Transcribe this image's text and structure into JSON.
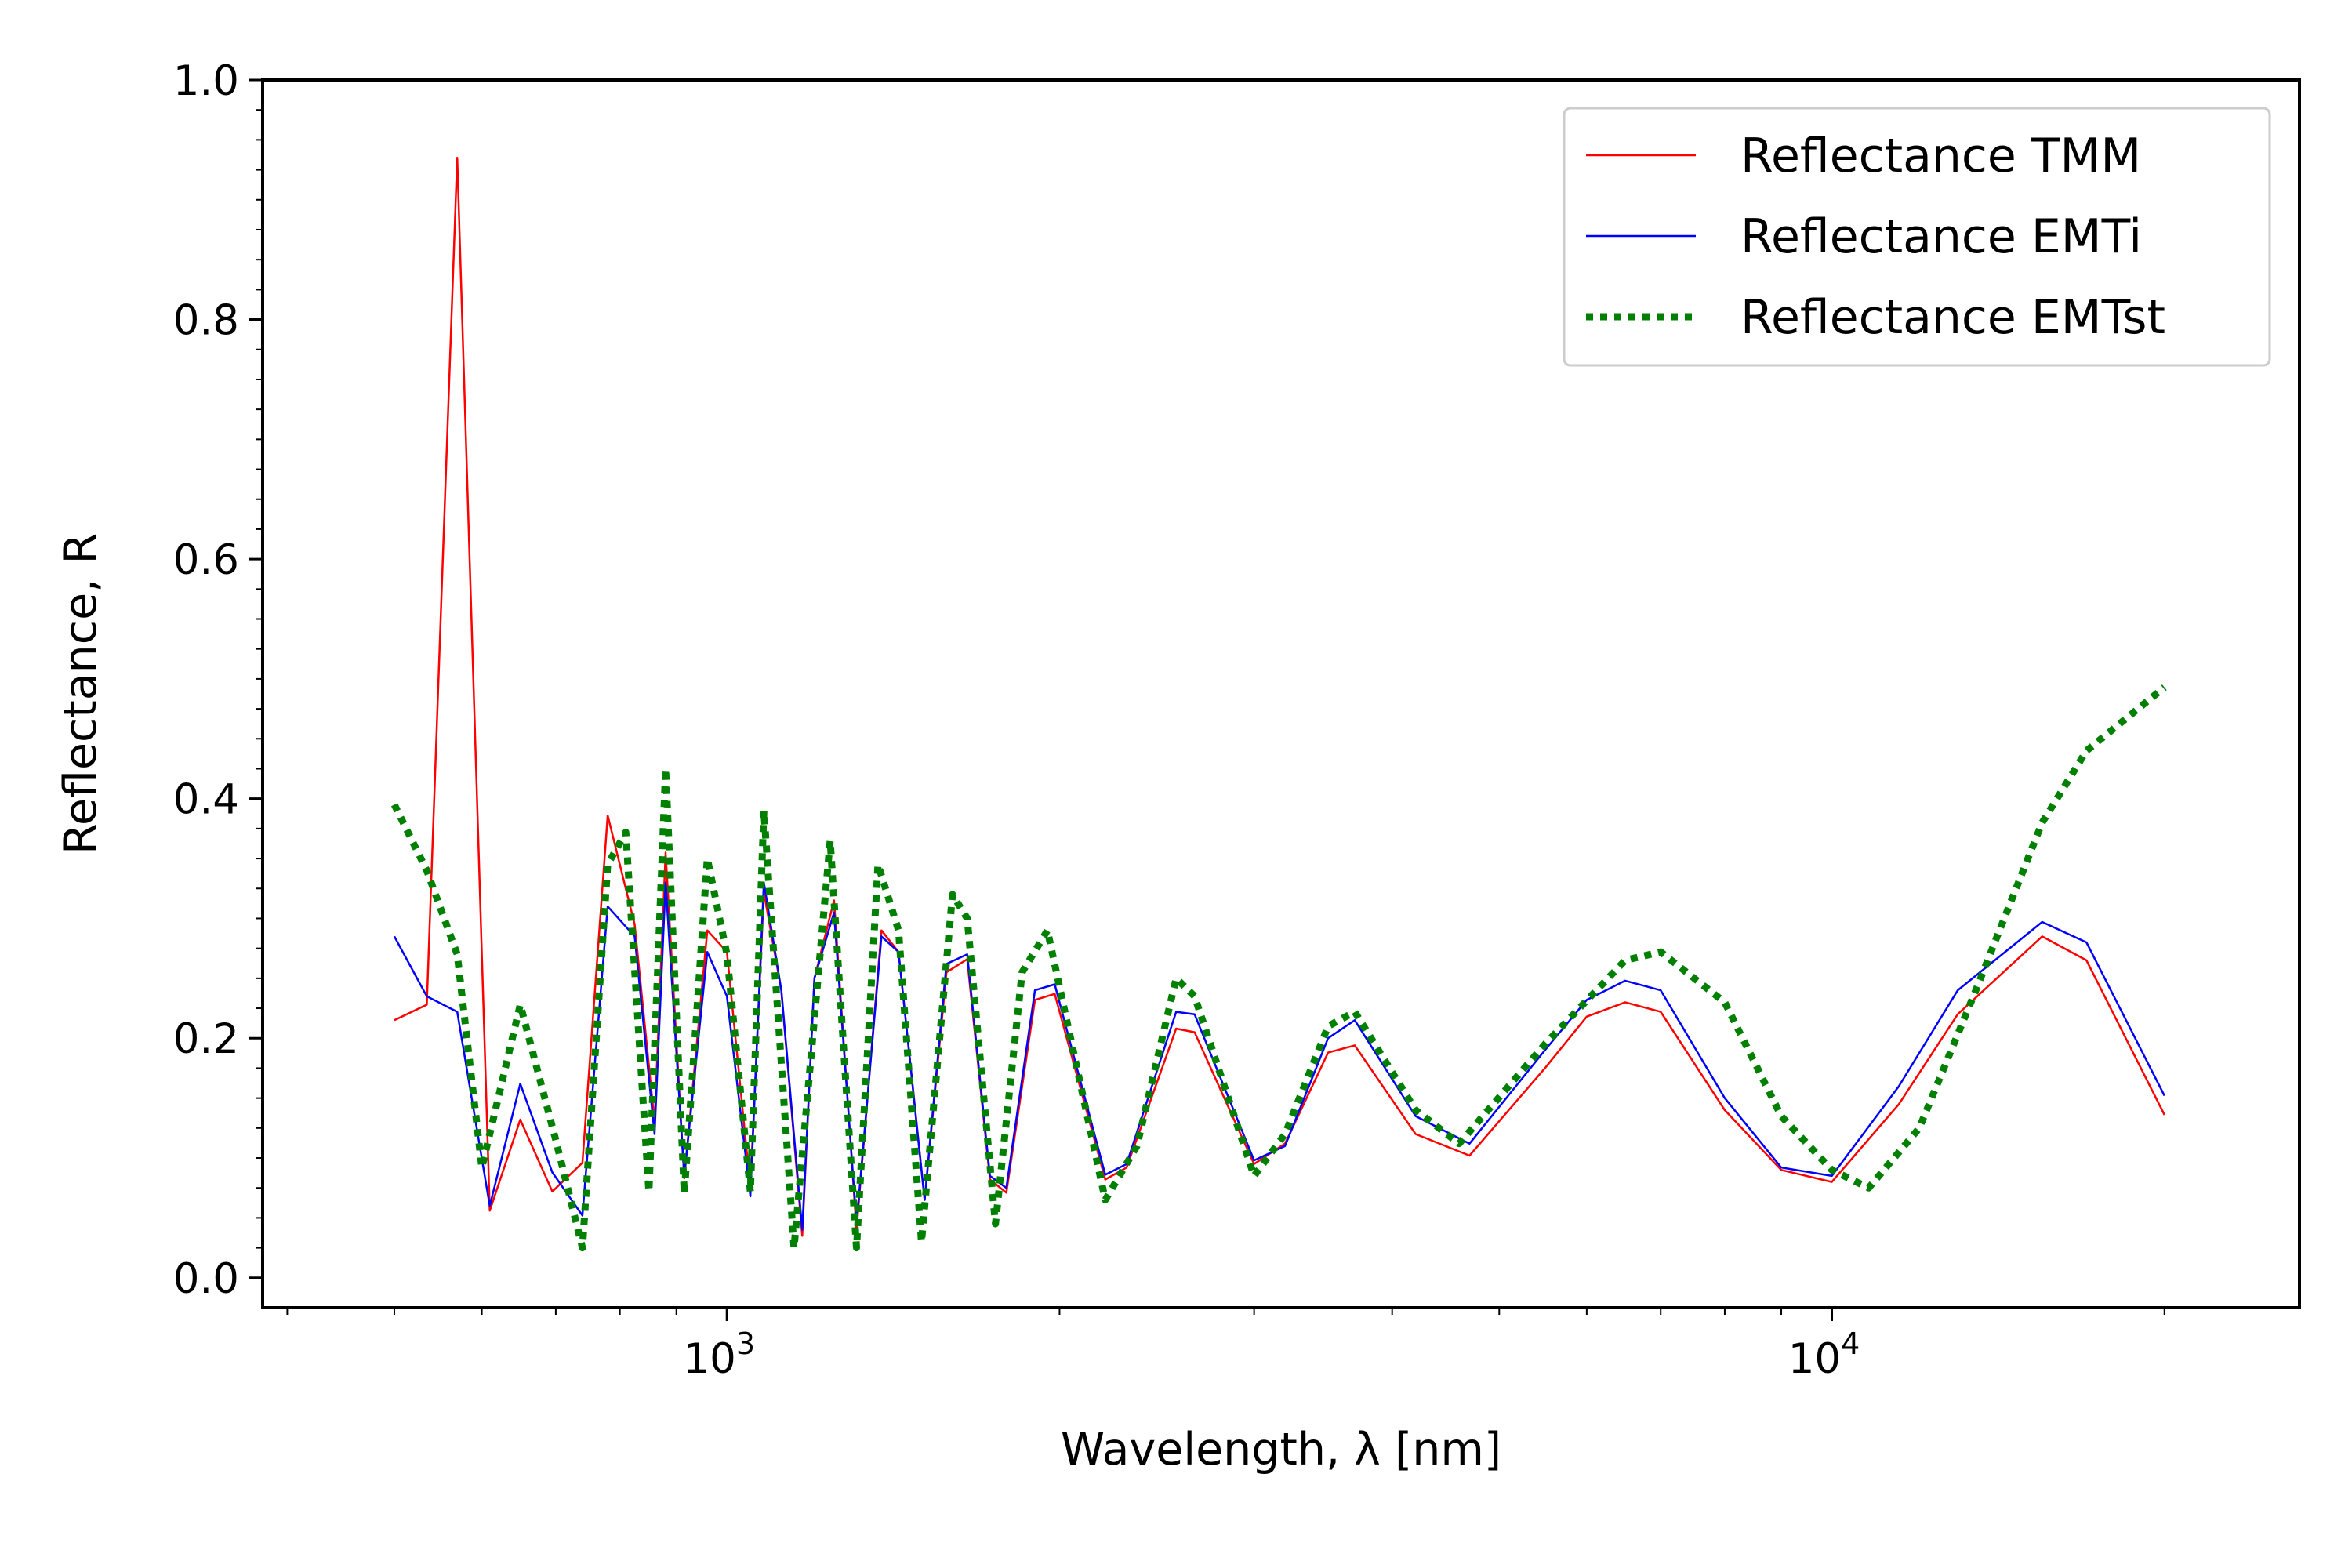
{
  "chart_data": {
    "type": "line",
    "xlabel": "Wavelength, λ [nm]",
    "ylabel": "Reflectance, R",
    "xscale": "log",
    "xlim": [
      380,
      26500
    ],
    "ylim": [
      -0.025,
      1.0
    ],
    "grid": false,
    "legend_position": "top-right",
    "x_ticks": [
      {
        "value": 1000,
        "base": "10",
        "exp": "3"
      },
      {
        "value": 10000,
        "base": "10",
        "exp": "4"
      }
    ],
    "y_ticks": [
      {
        "value": 0.0,
        "label": "0.0"
      },
      {
        "value": 0.2,
        "label": "0.2"
      },
      {
        "value": 0.4,
        "label": "0.4"
      },
      {
        "value": 0.6,
        "label": "0.6"
      },
      {
        "value": 0.8,
        "label": "0.8"
      },
      {
        "value": 1.0,
        "label": "1.0"
      }
    ],
    "series": [
      {
        "name": "Reflectance TMM",
        "color": "#ff0000",
        "style": "solid",
        "points": [
          [
            500,
            0.215
          ],
          [
            535,
            0.228
          ],
          [
            570,
            0.935
          ],
          [
            610,
            0.056
          ],
          [
            650,
            0.132
          ],
          [
            695,
            0.072
          ],
          [
            740,
            0.096
          ],
          [
            780,
            0.386
          ],
          [
            825,
            0.295
          ],
          [
            860,
            0.13
          ],
          [
            880,
            0.355
          ],
          [
            915,
            0.083
          ],
          [
            960,
            0.29
          ],
          [
            1000,
            0.272
          ],
          [
            1050,
            0.075
          ],
          [
            1080,
            0.322
          ],
          [
            1120,
            0.24
          ],
          [
            1170,
            0.035
          ],
          [
            1200,
            0.25
          ],
          [
            1250,
            0.315
          ],
          [
            1310,
            0.04
          ],
          [
            1380,
            0.29
          ],
          [
            1430,
            0.272
          ],
          [
            1510,
            0.065
          ],
          [
            1580,
            0.255
          ],
          [
            1650,
            0.266
          ],
          [
            1730,
            0.082
          ],
          [
            1790,
            0.071
          ],
          [
            1900,
            0.232
          ],
          [
            1980,
            0.237
          ],
          [
            2200,
            0.082
          ],
          [
            2300,
            0.092
          ],
          [
            2550,
            0.208
          ],
          [
            2650,
            0.205
          ],
          [
            3000,
            0.095
          ],
          [
            3200,
            0.112
          ],
          [
            3500,
            0.188
          ],
          [
            3700,
            0.194
          ],
          [
            4200,
            0.12
          ],
          [
            4700,
            0.102
          ],
          [
            5500,
            0.175
          ],
          [
            6000,
            0.218
          ],
          [
            6500,
            0.23
          ],
          [
            7000,
            0.222
          ],
          [
            8000,
            0.14
          ],
          [
            9000,
            0.09
          ],
          [
            10000,
            0.08
          ],
          [
            11500,
            0.145
          ],
          [
            13000,
            0.22
          ],
          [
            15500,
            0.285
          ],
          [
            17000,
            0.265
          ],
          [
            20000,
            0.136
          ]
        ]
      },
      {
        "name": "Reflectance EMTi",
        "color": "#0000ff",
        "style": "solid",
        "points": [
          [
            500,
            0.285
          ],
          [
            535,
            0.235
          ],
          [
            570,
            0.222
          ],
          [
            610,
            0.06
          ],
          [
            650,
            0.162
          ],
          [
            695,
            0.088
          ],
          [
            740,
            0.052
          ],
          [
            780,
            0.31
          ],
          [
            825,
            0.285
          ],
          [
            860,
            0.12
          ],
          [
            880,
            0.33
          ],
          [
            915,
            0.085
          ],
          [
            960,
            0.272
          ],
          [
            1000,
            0.235
          ],
          [
            1050,
            0.068
          ],
          [
            1080,
            0.33
          ],
          [
            1120,
            0.24
          ],
          [
            1170,
            0.04
          ],
          [
            1200,
            0.25
          ],
          [
            1250,
            0.305
          ],
          [
            1310,
            0.045
          ],
          [
            1380,
            0.285
          ],
          [
            1430,
            0.272
          ],
          [
            1510,
            0.065
          ],
          [
            1580,
            0.262
          ],
          [
            1650,
            0.27
          ],
          [
            1730,
            0.085
          ],
          [
            1790,
            0.075
          ],
          [
            1900,
            0.24
          ],
          [
            1980,
            0.245
          ],
          [
            2200,
            0.086
          ],
          [
            2300,
            0.095
          ],
          [
            2550,
            0.222
          ],
          [
            2650,
            0.22
          ],
          [
            3000,
            0.098
          ],
          [
            3200,
            0.11
          ],
          [
            3500,
            0.2
          ],
          [
            3700,
            0.215
          ],
          [
            4200,
            0.135
          ],
          [
            4700,
            0.112
          ],
          [
            5500,
            0.19
          ],
          [
            6000,
            0.232
          ],
          [
            6500,
            0.248
          ],
          [
            7000,
            0.24
          ],
          [
            8000,
            0.15
          ],
          [
            9000,
            0.092
          ],
          [
            10000,
            0.085
          ],
          [
            11500,
            0.16
          ],
          [
            13000,
            0.24
          ],
          [
            15500,
            0.297
          ],
          [
            17000,
            0.28
          ],
          [
            20000,
            0.152
          ]
        ]
      },
      {
        "name": "Reflectance EMTst",
        "color": "#008000",
        "style": "dotted",
        "points": [
          [
            500,
            0.395
          ],
          [
            535,
            0.34
          ],
          [
            570,
            0.27
          ],
          [
            600,
            0.092
          ],
          [
            650,
            0.228
          ],
          [
            700,
            0.115
          ],
          [
            740,
            0.025
          ],
          [
            780,
            0.345
          ],
          [
            810,
            0.372
          ],
          [
            850,
            0.072
          ],
          [
            880,
            0.425
          ],
          [
            915,
            0.07
          ],
          [
            960,
            0.35
          ],
          [
            1000,
            0.27
          ],
          [
            1050,
            0.072
          ],
          [
            1080,
            0.39
          ],
          [
            1150,
            0.025
          ],
          [
            1240,
            0.365
          ],
          [
            1310,
            0.025
          ],
          [
            1370,
            0.345
          ],
          [
            1430,
            0.29
          ],
          [
            1500,
            0.03
          ],
          [
            1600,
            0.32
          ],
          [
            1650,
            0.3
          ],
          [
            1750,
            0.045
          ],
          [
            1850,
            0.255
          ],
          [
            1950,
            0.29
          ],
          [
            2200,
            0.065
          ],
          [
            2350,
            0.11
          ],
          [
            2550,
            0.25
          ],
          [
            2650,
            0.235
          ],
          [
            3000,
            0.085
          ],
          [
            3200,
            0.12
          ],
          [
            3500,
            0.21
          ],
          [
            3700,
            0.222
          ],
          [
            4200,
            0.14
          ],
          [
            4600,
            0.112
          ],
          [
            5500,
            0.195
          ],
          [
            6500,
            0.265
          ],
          [
            7000,
            0.272
          ],
          [
            8000,
            0.23
          ],
          [
            9000,
            0.135
          ],
          [
            10000,
            0.09
          ],
          [
            10800,
            0.075
          ],
          [
            12000,
            0.125
          ],
          [
            13500,
            0.24
          ],
          [
            15500,
            0.38
          ],
          [
            17000,
            0.44
          ],
          [
            20000,
            0.493
          ]
        ]
      }
    ]
  }
}
